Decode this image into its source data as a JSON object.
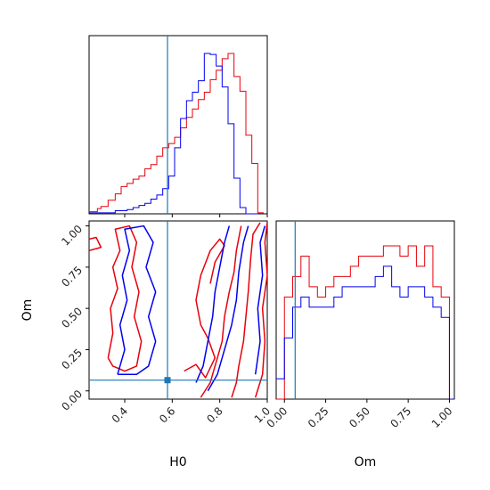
{
  "chart_data": {
    "type": "corner",
    "parameters": [
      "H0",
      "Om"
    ],
    "truth": {
      "H0": 0.58,
      "Om": 0.065
    },
    "colors": {
      "red": "#e8000b",
      "blue": "#0000ee",
      "truth": "#1f77b4"
    },
    "hist_H0": {
      "range": [
        0.25,
        1.0
      ],
      "ticks": [
        "0.4",
        "0.6",
        "0.8",
        "1.0"
      ],
      "series": [
        {
          "color": "red",
          "bins": [
            0.25,
            0.285,
            0.3,
            0.33,
            0.36,
            0.385,
            0.41,
            0.435,
            0.46,
            0.485,
            0.51,
            0.535,
            0.56,
            0.585,
            0.61,
            0.635,
            0.66,
            0.685,
            0.71,
            0.735,
            0.76,
            0.785,
            0.81,
            0.835,
            0.86,
            0.885,
            0.91,
            0.935,
            0.96,
            0.985
          ],
          "heights": [
            2,
            5,
            7,
            13,
            19,
            26,
            29,
            33,
            36,
            43,
            47,
            55,
            63,
            67,
            73,
            82,
            92,
            100,
            109,
            116,
            128,
            137,
            148,
            153,
            131,
            117,
            75,
            48,
            1
          ]
        },
        {
          "color": "blue",
          "bins": [
            0.25,
            0.36,
            0.41,
            0.435,
            0.46,
            0.485,
            0.51,
            0.535,
            0.56,
            0.585,
            0.61,
            0.635,
            0.66,
            0.685,
            0.71,
            0.735,
            0.76,
            0.785,
            0.81,
            0.835,
            0.86,
            0.885,
            0.91,
            0.935,
            0.96
          ],
          "heights": [
            1,
            3,
            4,
            6,
            8,
            10,
            14,
            18,
            24,
            36,
            63,
            91,
            108,
            116,
            127,
            153,
            152,
            141,
            121,
            86,
            34,
            6,
            0,
            0
          ]
        }
      ]
    },
    "hist_Om": {
      "range": [
        -0.05,
        1.03
      ],
      "ticks": [
        "0.00",
        "0.25",
        "0.50",
        "0.75",
        "1.00"
      ],
      "series": [
        {
          "color": "red",
          "bins": [
            -0.05,
            0.0,
            0.05,
            0.1,
            0.15,
            0.2,
            0.25,
            0.3,
            0.35,
            0.4,
            0.45,
            0.5,
            0.55,
            0.6,
            0.65,
            0.7,
            0.75,
            0.8,
            0.85,
            0.9,
            0.95,
            1.0,
            1.03
          ],
          "heights": [
            0,
            10,
            12,
            14,
            11,
            10,
            11,
            12,
            12,
            13,
            14,
            14,
            14,
            15,
            15,
            14,
            15,
            13,
            15,
            11,
            10,
            0
          ]
        },
        {
          "color": "blue",
          "bins": [
            -0.05,
            0.0,
            0.05,
            0.1,
            0.15,
            0.2,
            0.25,
            0.3,
            0.35,
            0.4,
            0.45,
            0.5,
            0.55,
            0.6,
            0.65,
            0.7,
            0.75,
            0.8,
            0.85,
            0.9,
            0.95,
            1.0,
            1.03
          ],
          "heights": [
            2,
            6,
            9,
            10,
            9,
            9,
            9,
            10,
            11,
            11,
            11,
            11,
            12,
            13,
            11,
            10,
            11,
            11,
            10,
            9,
            8,
            0
          ]
        }
      ]
    },
    "scatter_2d": {
      "xlabel": "H0",
      "ylabel": "Om",
      "xlim": [
        0.25,
        1.0
      ],
      "ylim": [
        -0.05,
        1.03
      ],
      "xticks": [
        "0.4",
        "0.6",
        "0.8",
        "1.0"
      ],
      "yticks": [
        "0.00",
        "0.25",
        "0.50",
        "0.75",
        "1.00"
      ],
      "contours": [
        {
          "color": "red",
          "points": [
            [
              0.85,
              -0.04
            ],
            [
              0.87,
              0.05
            ],
            [
              0.88,
              0.15
            ],
            [
              0.9,
              0.3
            ],
            [
              0.91,
              0.45
            ],
            [
              0.92,
              0.6
            ],
            [
              0.93,
              0.8
            ],
            [
              0.94,
              0.95
            ],
            [
              0.97,
              1.02
            ]
          ]
        },
        {
          "color": "red",
          "points": [
            [
              0.72,
              -0.04
            ],
            [
              0.76,
              0.05
            ],
            [
              0.78,
              0.15
            ],
            [
              0.81,
              0.3
            ],
            [
              0.82,
              0.45
            ],
            [
              0.84,
              0.6
            ],
            [
              0.86,
              0.72
            ],
            [
              0.87,
              0.85
            ],
            [
              0.89,
              1.0
            ]
          ]
        },
        {
          "color": "red",
          "points": [
            [
              0.95,
              -0.04
            ],
            [
              0.98,
              0.1
            ],
            [
              0.99,
              0.3
            ],
            [
              0.98,
              0.5
            ],
            [
              1.0,
              0.7
            ],
            [
              0.99,
              0.9
            ],
            [
              1.0,
              1.02
            ]
          ]
        },
        {
          "color": "red",
          "points": [
            [
              0.33,
              0.2
            ],
            [
              0.35,
              0.35
            ],
            [
              0.34,
              0.5
            ],
            [
              0.37,
              0.62
            ],
            [
              0.35,
              0.75
            ],
            [
              0.38,
              0.85
            ],
            [
              0.36,
              0.98
            ],
            [
              0.42,
              1.0
            ],
            [
              0.45,
              0.9
            ],
            [
              0.43,
              0.75
            ],
            [
              0.46,
              0.6
            ],
            [
              0.44,
              0.45
            ],
            [
              0.47,
              0.3
            ],
            [
              0.45,
              0.15
            ],
            [
              0.4,
              0.12
            ],
            [
              0.35,
              0.15
            ],
            [
              0.33,
              0.2
            ]
          ]
        },
        {
          "color": "red",
          "points": [
            [
              0.25,
              0.85
            ],
            [
              0.3,
              0.87
            ],
            [
              0.28,
              0.93
            ],
            [
              0.25,
              0.92
            ]
          ]
        },
        {
          "color": "red",
          "points": [
            [
              0.65,
              0.12
            ],
            [
              0.7,
              0.16
            ],
            [
              0.74,
              0.08
            ],
            [
              0.78,
              0.2
            ],
            [
              0.75,
              0.32
            ],
            [
              0.72,
              0.4
            ],
            [
              0.7,
              0.55
            ],
            [
              0.72,
              0.7
            ],
            [
              0.76,
              0.85
            ],
            [
              0.8,
              0.92
            ],
            [
              0.82,
              0.88
            ],
            [
              0.78,
              0.78
            ],
            [
              0.76,
              0.65
            ]
          ]
        },
        {
          "color": "blue",
          "points": [
            [
              0.75,
              0.0
            ],
            [
              0.79,
              0.1
            ],
            [
              0.82,
              0.25
            ],
            [
              0.85,
              0.4
            ],
            [
              0.87,
              0.55
            ],
            [
              0.88,
              0.72
            ],
            [
              0.9,
              0.9
            ],
            [
              0.92,
              1.0
            ]
          ]
        },
        {
          "color": "blue",
          "points": [
            [
              0.7,
              0.05
            ],
            [
              0.73,
              0.15
            ],
            [
              0.75,
              0.3
            ],
            [
              0.77,
              0.45
            ],
            [
              0.78,
              0.6
            ],
            [
              0.8,
              0.75
            ],
            [
              0.82,
              0.9
            ],
            [
              0.84,
              1.0
            ]
          ]
        },
        {
          "color": "blue",
          "points": [
            [
              0.37,
              0.1
            ],
            [
              0.4,
              0.25
            ],
            [
              0.38,
              0.4
            ],
            [
              0.41,
              0.55
            ],
            [
              0.39,
              0.7
            ],
            [
              0.42,
              0.85
            ],
            [
              0.4,
              0.98
            ],
            [
              0.48,
              1.0
            ],
            [
              0.52,
              0.9
            ],
            [
              0.49,
              0.75
            ],
            [
              0.53,
              0.6
            ],
            [
              0.5,
              0.45
            ],
            [
              0.53,
              0.3
            ],
            [
              0.5,
              0.15
            ],
            [
              0.45,
              0.1
            ],
            [
              0.37,
              0.1
            ]
          ]
        },
        {
          "color": "blue",
          "points": [
            [
              0.95,
              0.1
            ],
            [
              0.97,
              0.3
            ],
            [
              0.96,
              0.5
            ],
            [
              0.98,
              0.7
            ],
            [
              0.97,
              0.9
            ],
            [
              0.99,
              1.0
            ]
          ]
        }
      ],
      "truth_point": [
        0.58,
        0.065
      ]
    }
  }
}
